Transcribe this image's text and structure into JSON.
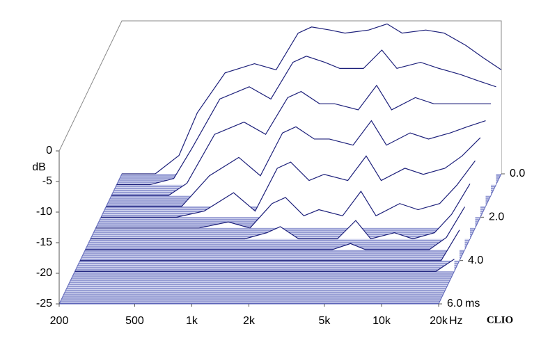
{
  "chart_data": {
    "type": "waterfall",
    "ylabel": "dB",
    "xunit": "Hz",
    "tunit": "ms",
    "brand": "CLIO",
    "xlim": [
      200,
      20000
    ],
    "log_x": true,
    "xticks": [
      200,
      500,
      {
        "value": 1000,
        "label": "1k"
      },
      {
        "value": 2000,
        "label": "2k"
      },
      {
        "value": 5000,
        "label": "5k"
      },
      {
        "value": 10000,
        "label": "10k"
      },
      {
        "value": 20000,
        "label": "20k"
      }
    ],
    "ylim": [
      -25,
      0
    ],
    "yticks": [
      0,
      -5,
      -10,
      -15,
      -20,
      -25
    ],
    "tlim": [
      0,
      6
    ],
    "tticks": [
      {
        "value": 0,
        "label": "0.0"
      },
      {
        "value": 2,
        "label": "2.0"
      },
      {
        "value": 4,
        "label": "4.0"
      },
      {
        "value": 6,
        "label": "6.0"
      }
    ],
    "color": "#1c1f7a",
    "x": [
      200,
      300,
      400,
      500,
      700,
      1000,
      1300,
      1700,
      2000,
      2500,
      3000,
      4000,
      5000,
      6000,
      8000,
      10000,
      13000,
      16000,
      20000
    ],
    "slices": [
      {
        "t": 0,
        "values": [
          -25,
          -25,
          -22,
          -15,
          -8.5,
          -7,
          -8,
          -2,
          -1,
          -1.5,
          -2,
          -1.5,
          -0.5,
          -2,
          -1.5,
          -2,
          -4,
          -6,
          -8
        ]
      },
      {
        "t": 0.5,
        "values": [
          -25,
          -25,
          -24,
          -19,
          -11,
          -9,
          -11,
          -5,
          -4,
          -5,
          -6,
          -6,
          -3,
          -6,
          -5,
          -6,
          -7,
          -8,
          -9
        ]
      },
      {
        "t": 1,
        "values": [
          -25,
          -25,
          -25,
          -23,
          -15,
          -13,
          -15,
          -9,
          -8,
          -10,
          -10,
          -11,
          -7,
          -11,
          -9,
          -10,
          -10,
          -10,
          -10
        ]
      },
      {
        "t": 1.5,
        "values": [
          -25,
          -25,
          -25,
          -25,
          -20,
          -17,
          -20,
          -13,
          -12,
          -14,
          -14,
          -15,
          -11,
          -15,
          -13,
          -14,
          -13,
          -12,
          -11
        ]
      },
      {
        "t": 2,
        "values": [
          -25,
          -25,
          -25,
          -25,
          -24,
          -21,
          -24,
          -17,
          -16,
          -19,
          -18,
          -19,
          -15,
          -19,
          -17,
          -18,
          -17,
          -15,
          -12
        ]
      },
      {
        "t": 2.5,
        "values": [
          -25,
          -25,
          -25,
          -25,
          -25,
          -24,
          -25,
          -21,
          -20,
          -23,
          -22,
          -23,
          -19,
          -23,
          -21,
          -22,
          -21,
          -18,
          -14
        ]
      },
      {
        "t": 3,
        "values": [
          -25,
          -25,
          -25,
          -25,
          -25,
          -25,
          -25,
          -24,
          -23,
          -25,
          -25,
          -25,
          -22,
          -25,
          -24,
          -25,
          -24,
          -21,
          -16
        ]
      },
      {
        "t": 3.5,
        "values": [
          -25,
          -25,
          -25,
          -25,
          -25,
          -25,
          -25,
          -25,
          -25,
          -25,
          -25,
          -25,
          -24,
          -25,
          -25,
          -25,
          -25,
          -23,
          -18
        ]
      },
      {
        "t": 4,
        "values": [
          -25,
          -25,
          -25,
          -25,
          -25,
          -25,
          -25,
          -25,
          -25,
          -25,
          -25,
          -25,
          -25,
          -25,
          -25,
          -25,
          -25,
          -25,
          -20
        ]
      },
      {
        "t": 4.5,
        "values": [
          -25,
          -25,
          -25,
          -25,
          -25,
          -25,
          -25,
          -25,
          -25,
          -25,
          -25,
          -25,
          -25,
          -25,
          -25,
          -25,
          -25,
          -25,
          -23
        ]
      }
    ]
  }
}
